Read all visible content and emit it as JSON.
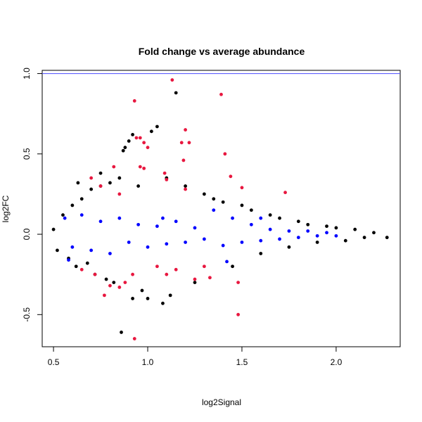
{
  "chart_data": {
    "type": "scatter",
    "title": "Fold change vs average abundance",
    "xlabel": "log2Signal",
    "ylabel": "log2FC",
    "xlim": [
      0.44,
      2.34
    ],
    "ylim": [
      -0.7,
      1.02
    ],
    "x_ticks": [
      0.5,
      1.0,
      1.5,
      2.0
    ],
    "x_tick_labels": [
      "0.5",
      "1.0",
      "1.5",
      "2.0"
    ],
    "y_ticks": [
      -0.5,
      0.0,
      0.5,
      1.0
    ],
    "y_tick_labels": [
      "-0.5",
      "0.0",
      "0.5",
      "1.0"
    ],
    "grid": false,
    "reference_line": {
      "y": 1.0,
      "color": "#4b4bff"
    },
    "series": [
      {
        "color": "#000000",
        "points": [
          [
            0.5,
            0.03
          ],
          [
            0.52,
            -0.1
          ],
          [
            0.55,
            0.12
          ],
          [
            0.58,
            -0.15
          ],
          [
            0.6,
            0.18
          ],
          [
            0.62,
            -0.2
          ],
          [
            0.65,
            0.22
          ],
          [
            0.68,
            -0.18
          ],
          [
            0.7,
            0.28
          ],
          [
            0.72,
            -0.25
          ],
          [
            0.75,
            0.3
          ],
          [
            0.78,
            -0.28
          ],
          [
            0.8,
            0.32
          ],
          [
            0.82,
            -0.3
          ],
          [
            0.85,
            0.35
          ],
          [
            0.87,
            0.52
          ],
          [
            0.88,
            0.54
          ],
          [
            0.9,
            0.58
          ],
          [
            0.92,
            0.62
          ],
          [
            0.95,
            0.3
          ],
          [
            0.97,
            -0.35
          ],
          [
            1.0,
            -0.4
          ],
          [
            1.02,
            0.64
          ],
          [
            1.05,
            0.67
          ],
          [
            1.08,
            -0.43
          ],
          [
            1.1,
            0.35
          ],
          [
            1.15,
            0.88
          ],
          [
            1.2,
            0.3
          ],
          [
            1.25,
            -0.3
          ],
          [
            1.3,
            0.25
          ],
          [
            1.35,
            0.22
          ],
          [
            1.4,
            0.2
          ],
          [
            1.45,
            -0.2
          ],
          [
            1.5,
            0.18
          ],
          [
            1.55,
            0.15
          ],
          [
            1.6,
            -0.12
          ],
          [
            1.65,
            0.12
          ],
          [
            1.7,
            0.1
          ],
          [
            1.75,
            -0.08
          ],
          [
            1.8,
            0.08
          ],
          [
            1.85,
            0.06
          ],
          [
            1.9,
            -0.05
          ],
          [
            1.95,
            0.05
          ],
          [
            2.0,
            0.04
          ],
          [
            2.05,
            -0.04
          ],
          [
            2.1,
            0.03
          ],
          [
            2.15,
            -0.02
          ],
          [
            2.2,
            0.01
          ],
          [
            2.27,
            -0.02
          ],
          [
            0.86,
            -0.61
          ],
          [
            0.92,
            -0.4
          ],
          [
            1.12,
            -0.38
          ],
          [
            0.63,
            0.32
          ],
          [
            0.75,
            0.38
          ]
        ]
      },
      {
        "color": "#0000ff",
        "points": [
          [
            0.56,
            0.1
          ],
          [
            0.6,
            -0.08
          ],
          [
            0.65,
            0.12
          ],
          [
            0.7,
            -0.1
          ],
          [
            0.75,
            0.08
          ],
          [
            0.8,
            -0.12
          ],
          [
            0.85,
            0.1
          ],
          [
            0.9,
            -0.05
          ],
          [
            0.95,
            0.06
          ],
          [
            1.0,
            -0.08
          ],
          [
            1.05,
            0.05
          ],
          [
            1.1,
            -0.06
          ],
          [
            1.15,
            0.08
          ],
          [
            1.2,
            -0.05
          ],
          [
            1.25,
            0.04
          ],
          [
            1.3,
            -0.03
          ],
          [
            1.35,
            0.15
          ],
          [
            1.4,
            -0.07
          ],
          [
            1.45,
            0.1
          ],
          [
            1.5,
            -0.05
          ],
          [
            1.55,
            0.06
          ],
          [
            1.6,
            -0.04
          ],
          [
            1.65,
            0.03
          ],
          [
            1.7,
            -0.03
          ],
          [
            1.75,
            0.02
          ],
          [
            1.8,
            -0.02
          ],
          [
            1.85,
            0.02
          ],
          [
            1.9,
            -0.01
          ],
          [
            1.95,
            0.01
          ],
          [
            2.0,
            -0.01
          ],
          [
            1.42,
            -0.17
          ],
          [
            1.6,
            0.1
          ],
          [
            0.58,
            -0.16
          ],
          [
            1.08,
            0.1
          ]
        ]
      },
      {
        "color": "#e8173f",
        "points": [
          [
            1.13,
            0.96
          ],
          [
            1.39,
            0.87
          ],
          [
            0.93,
            0.83
          ],
          [
            1.2,
            0.65
          ],
          [
            0.94,
            0.6
          ],
          [
            0.96,
            0.6
          ],
          [
            0.98,
            0.57
          ],
          [
            1.0,
            0.54
          ],
          [
            1.18,
            0.57
          ],
          [
            1.22,
            0.57
          ],
          [
            1.41,
            0.5
          ],
          [
            1.19,
            0.46
          ],
          [
            0.96,
            0.42
          ],
          [
            0.98,
            0.41
          ],
          [
            1.09,
            0.38
          ],
          [
            1.44,
            0.36
          ],
          [
            1.1,
            0.34
          ],
          [
            1.5,
            0.29
          ],
          [
            1.73,
            0.26
          ],
          [
            0.82,
            0.42
          ],
          [
            0.7,
            0.35
          ],
          [
            0.75,
            0.3
          ],
          [
            0.85,
            0.25
          ],
          [
            1.2,
            0.28
          ],
          [
            0.65,
            -0.22
          ],
          [
            0.72,
            -0.25
          ],
          [
            0.8,
            -0.32
          ],
          [
            0.88,
            -0.3
          ],
          [
            0.92,
            -0.25
          ],
          [
            1.05,
            -0.2
          ],
          [
            1.15,
            -0.22
          ],
          [
            1.25,
            -0.28
          ],
          [
            1.33,
            -0.27
          ],
          [
            1.48,
            -0.3
          ],
          [
            1.48,
            -0.5
          ],
          [
            0.93,
            -0.65
          ],
          [
            0.77,
            -0.38
          ],
          [
            0.85,
            -0.33
          ],
          [
            1.1,
            -0.25
          ],
          [
            1.3,
            -0.2
          ]
        ]
      }
    ]
  }
}
